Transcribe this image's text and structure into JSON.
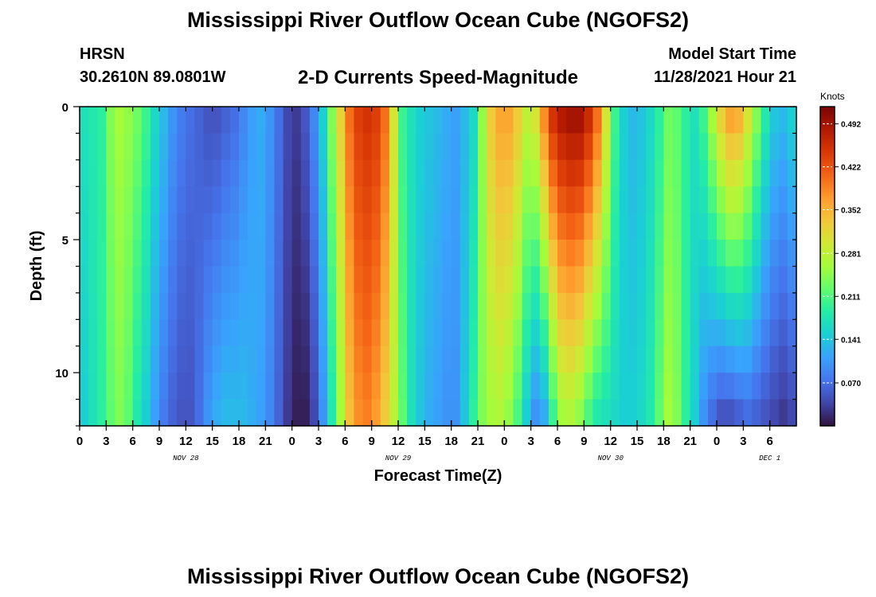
{
  "header": {
    "title": "Mississippi River Outflow Ocean Cube (NGOFS2)",
    "station": "HRSN",
    "coords": "30.2610N  89.0801W",
    "subtitle": "2-D Currents Speed-Magnitude",
    "model_start_label": "Model Start Time",
    "model_start_value": "11/28/2021 Hour 21"
  },
  "footer": {
    "title": "Mississippi River Outflow Ocean Cube (NGOFS2)"
  },
  "colors": {
    "colormap": [
      "#30123b",
      "#4145ab",
      "#4675ed",
      "#39a2fc",
      "#1bcfd4",
      "#24eca6",
      "#61fc6c",
      "#a4fc3b",
      "#d1e834",
      "#f3c63a",
      "#fe9b2d",
      "#f36315",
      "#d93806",
      "#b11901",
      "#7a0403"
    ]
  },
  "chart_data": {
    "type": "heatmap",
    "xlabel": "Forecast Time(Z)",
    "ylabel": "Depth (ft)",
    "colorbar_label": "Knots",
    "colorbar_ticks": [
      "0.070",
      "0.141",
      "0.211",
      "0.281",
      "0.352",
      "0.422",
      "0.492"
    ],
    "colorbar_tick_values": [
      0.07,
      0.141,
      0.211,
      0.281,
      0.352,
      0.422,
      0.492
    ],
    "value_range": [
      0.0,
      0.52
    ],
    "x_range_hours": [
      0,
      81
    ],
    "x_tick_labels": [
      "0",
      "3",
      "6",
      "9",
      "12",
      "15",
      "18",
      "21",
      "0",
      "3",
      "6",
      "9",
      "12",
      "15",
      "18",
      "21",
      "0",
      "3",
      "6",
      "9",
      "12",
      "15",
      "18",
      "21",
      "0",
      "3",
      "6"
    ],
    "date_labels": [
      {
        "hour": 12,
        "text": "NOV 28"
      },
      {
        "hour": 36,
        "text": "NOV 29"
      },
      {
        "hour": 60,
        "text": "NOV 30"
      },
      {
        "hour": 78,
        "text": "DEC 1"
      }
    ],
    "y_range_ft": [
      0,
      12
    ],
    "y_tick_labels": [
      "0",
      "5",
      "10"
    ],
    "y_tick_values": [
      0,
      5,
      10
    ],
    "depths_ft": [
      0.5,
      1.5,
      2.5,
      3.5,
      4.5,
      5.5,
      6.5,
      7.5,
      8.5,
      9.5,
      10.5,
      11.5
    ],
    "surface_profile": [
      0.17,
      0.18,
      0.19,
      0.24,
      0.26,
      0.25,
      0.23,
      0.2,
      0.16,
      0.13,
      0.1,
      0.08,
      0.07,
      0.06,
      0.05,
      0.05,
      0.06,
      0.07,
      0.09,
      0.11,
      0.12,
      0.1,
      0.07,
      0.04,
      0.03,
      0.05,
      0.09,
      0.15,
      0.24,
      0.32,
      0.4,
      0.44,
      0.45,
      0.44,
      0.4,
      0.3,
      0.2,
      0.17,
      0.15,
      0.14,
      0.13,
      0.12,
      0.11,
      0.13,
      0.16,
      0.25,
      0.33,
      0.36,
      0.36,
      0.33,
      0.28,
      0.3,
      0.38,
      0.45,
      0.48,
      0.49,
      0.49,
      0.46,
      0.4,
      0.3,
      0.2,
      0.15,
      0.13,
      0.14,
      0.16,
      0.19,
      0.23,
      0.22,
      0.19,
      0.17,
      0.2,
      0.26,
      0.32,
      0.36,
      0.35,
      0.3,
      0.24,
      0.18,
      0.14,
      0.13,
      0.15
    ],
    "bottom_profile": [
      0.15,
      0.17,
      0.19,
      0.22,
      0.24,
      0.22,
      0.18,
      0.15,
      0.11,
      0.08,
      0.06,
      0.05,
      0.05,
      0.07,
      0.1,
      0.12,
      0.13,
      0.13,
      0.13,
      0.12,
      0.11,
      0.09,
      0.06,
      0.03,
      0.01,
      0.01,
      0.04,
      0.1,
      0.18,
      0.26,
      0.34,
      0.38,
      0.39,
      0.37,
      0.33,
      0.28,
      0.22,
      0.17,
      0.14,
      0.12,
      0.11,
      0.1,
      0.1,
      0.14,
      0.19,
      0.24,
      0.26,
      0.27,
      0.25,
      0.21,
      0.15,
      0.1,
      0.12,
      0.2,
      0.26,
      0.27,
      0.25,
      0.21,
      0.18,
      0.17,
      0.16,
      0.15,
      0.15,
      0.16,
      0.18,
      0.22,
      0.26,
      0.24,
      0.19,
      0.15,
      0.1,
      0.07,
      0.05,
      0.05,
      0.06,
      0.07,
      0.06,
      0.05,
      0.04,
      0.03,
      0.04
    ]
  }
}
